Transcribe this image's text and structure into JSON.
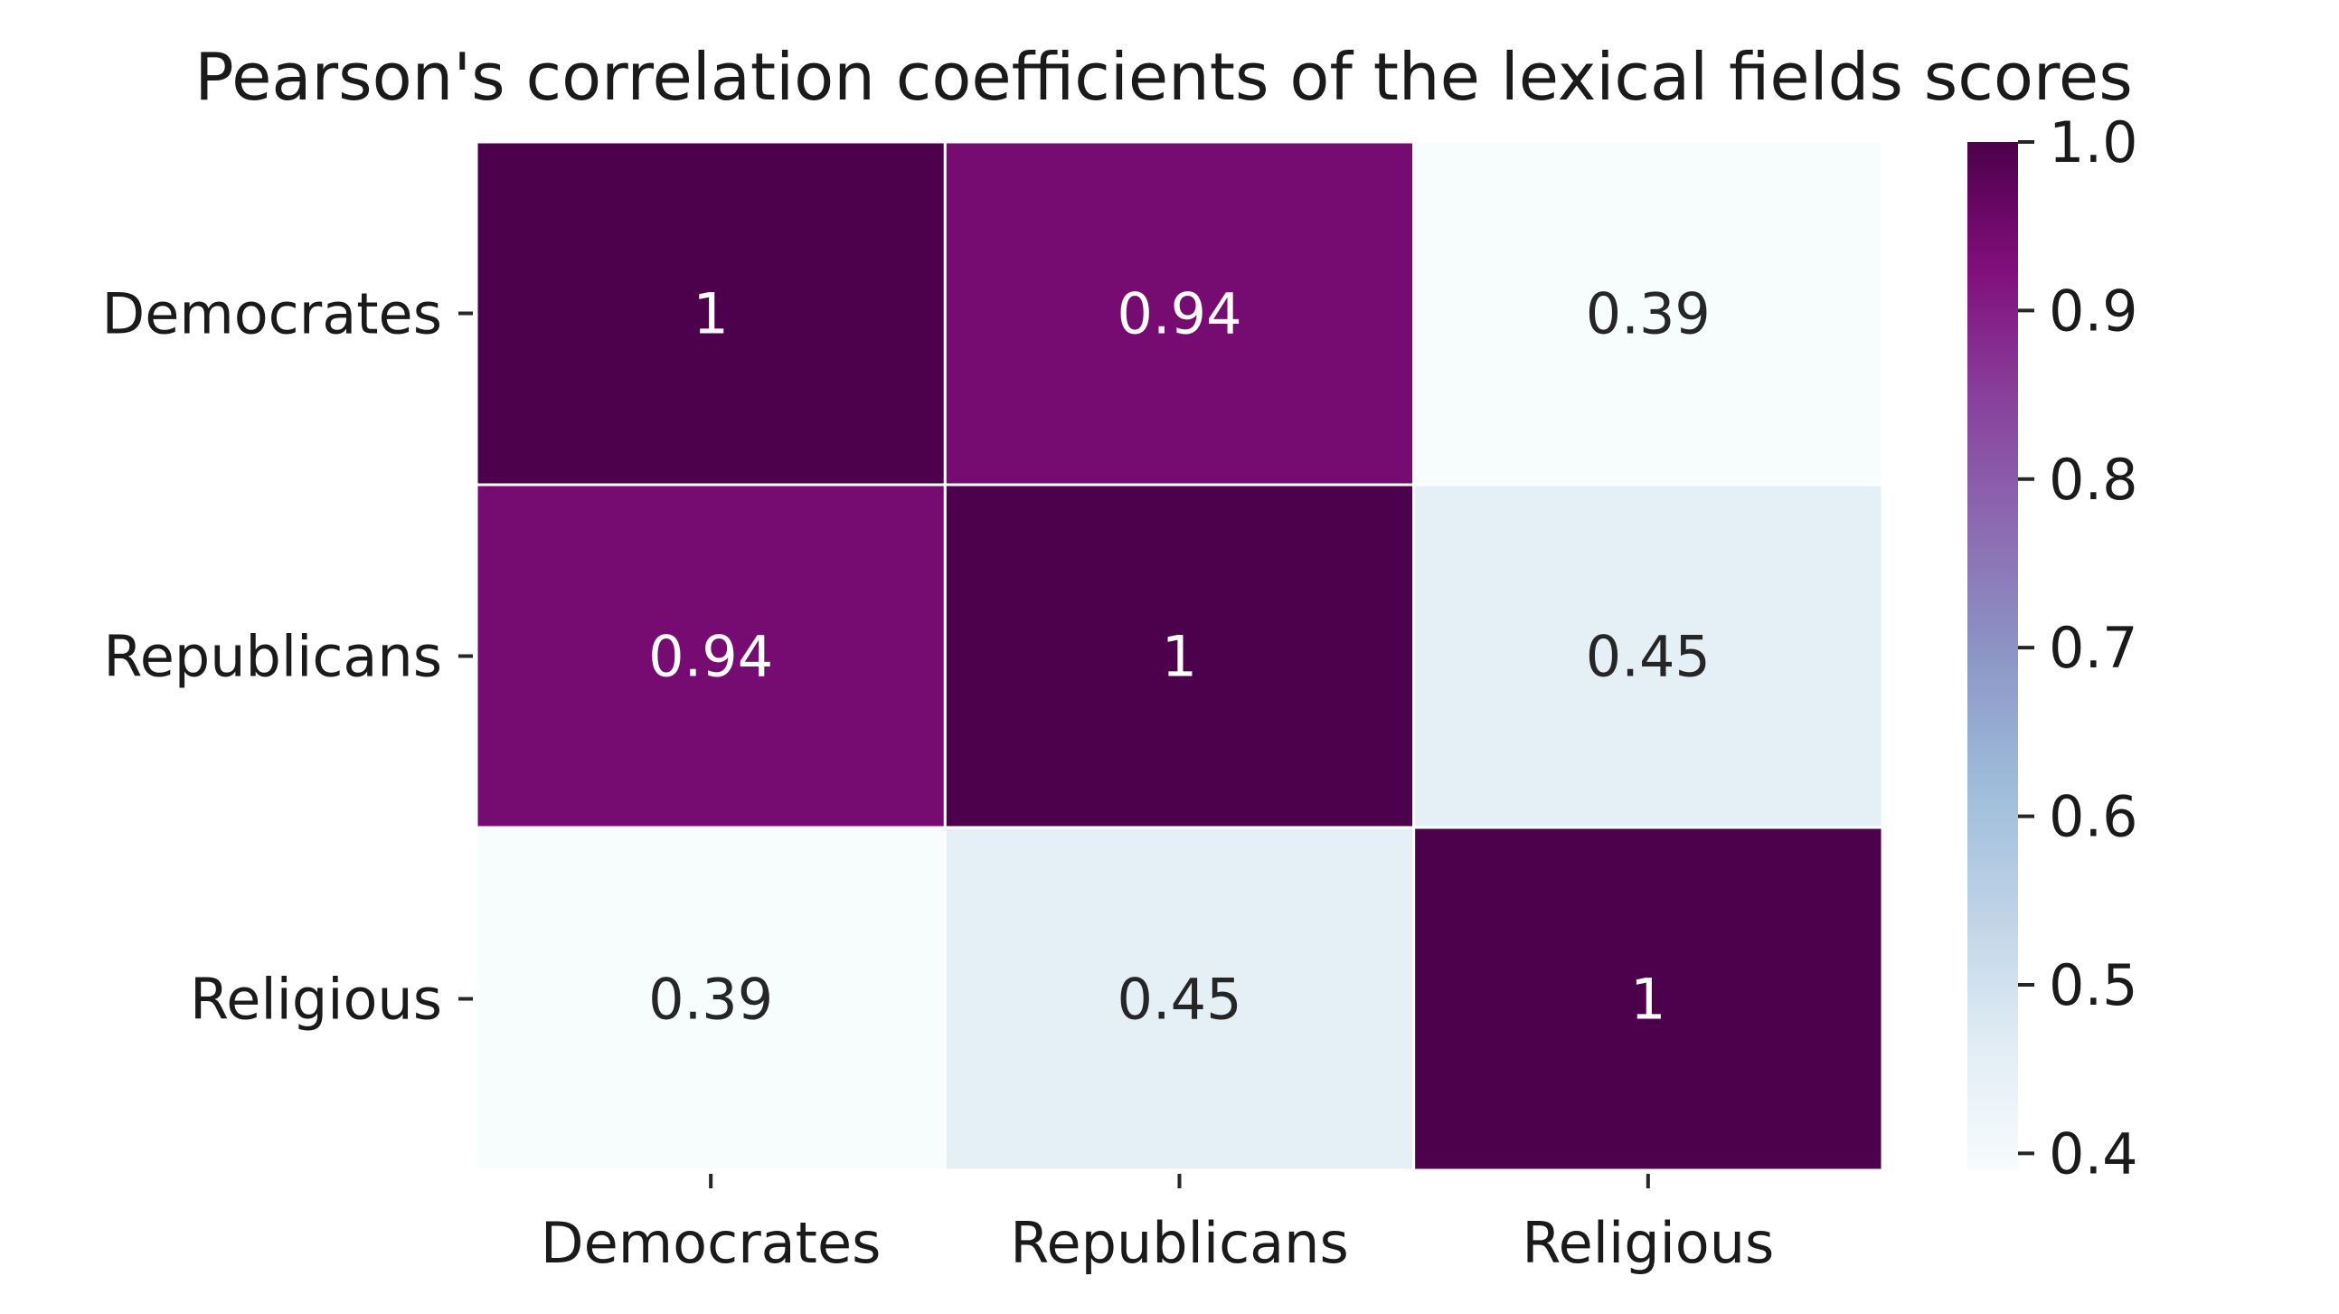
{
  "chart_data": {
    "type": "heatmap",
    "title": "Pearson's correlation coefficients of the lexical fields scores",
    "xlabel": "",
    "ylabel": "",
    "x_categories": [
      "Democrates",
      "Republicans",
      "Religious"
    ],
    "y_categories": [
      "Democrates",
      "Republicans",
      "Religious"
    ],
    "values": [
      [
        1,
        0.94,
        0.39
      ],
      [
        0.94,
        1,
        0.45
      ],
      [
        0.39,
        0.45,
        1
      ]
    ],
    "cell_labels": [
      [
        "1",
        "0.94",
        "0.39"
      ],
      [
        "0.94",
        "1",
        "0.45"
      ],
      [
        "0.39",
        "0.45",
        "1"
      ]
    ],
    "colormap": "BuPu",
    "colormap_stops": [
      "#f7fcfd",
      "#e0ecf4",
      "#bfd3e6",
      "#9ebcda",
      "#8c96c6",
      "#8c6bb1",
      "#88419d",
      "#810f7c",
      "#4d004b"
    ],
    "vmin": 0.39,
    "vmax": 1.0,
    "colorbar_ticks": [
      "0.4",
      "0.5",
      "0.6",
      "0.7",
      "0.8",
      "0.9",
      "1.0"
    ],
    "colorbar_tick_values": [
      0.4,
      0.5,
      0.6,
      0.7,
      0.8,
      0.9,
      1.0
    ],
    "grid": false,
    "legend": "colorbar-right"
  }
}
